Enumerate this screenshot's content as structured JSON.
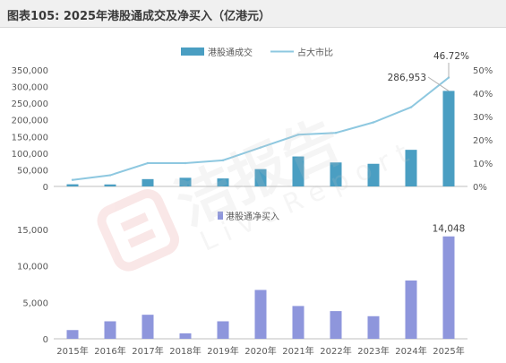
{
  "header": {
    "title": "图表105: 2025年港股通成交及净买入（亿港元）"
  },
  "watermark": {
    "main": "洁报告",
    "sub": "LiveReport"
  },
  "colors": {
    "bar_top": "#4a9ec2",
    "line": "#8ec8e0",
    "bar_bottom": "#8e96dc",
    "axis": "#bfbfbf",
    "text": "#595959"
  },
  "chart_data": [
    {
      "type": "bar+line",
      "categories": [
        "2015年",
        "2016年",
        "2017年",
        "2018年",
        "2019年",
        "2020年",
        "2021年",
        "2022年",
        "2023年",
        "2024年",
        "2025年"
      ],
      "series": [
        {
          "name": "港股通成交",
          "axis": "left",
          "type": "bar",
          "values": [
            6500,
            6000,
            22000,
            26000,
            24000,
            52000,
            90000,
            72000,
            68000,
            110000,
            286953
          ]
        },
        {
          "name": "占大市比",
          "axis": "right",
          "type": "line",
          "values": [
            2.8,
            4.8,
            10.0,
            10.0,
            11.2,
            16.7,
            22.2,
            23.0,
            27.5,
            34.0,
            46.72
          ]
        }
      ],
      "annotations": [
        "286,953",
        "46.72%"
      ],
      "left_axis": {
        "min": 0,
        "max": 350000,
        "ticks": [
          0,
          50000,
          100000,
          150000,
          200000,
          250000,
          300000,
          350000
        ],
        "tick_labels": [
          "0",
          "50,000",
          "100,000",
          "150,000",
          "200,000",
          "250,000",
          "300,000",
          "350,000"
        ]
      },
      "right_axis": {
        "min": 0,
        "max": 50,
        "ticks": [
          0,
          10,
          20,
          30,
          40,
          50
        ],
        "tick_labels": [
          "0%",
          "10%",
          "20%",
          "30%",
          "40%",
          "50%"
        ]
      },
      "legend": "top-center",
      "grid": false
    },
    {
      "type": "bar",
      "categories": [
        "2015年",
        "2016年",
        "2017年",
        "2018年",
        "2019年",
        "2020年",
        "2021年",
        "2022年",
        "2023年",
        "2024年",
        "2025年"
      ],
      "series": [
        {
          "name": "港股通净买入",
          "values": [
            1200,
            2400,
            3300,
            750,
            2400,
            6700,
            4500,
            3800,
            3100,
            8000,
            14048
          ]
        }
      ],
      "annotations": [
        "14,048"
      ],
      "y_axis": {
        "min": 0,
        "max": 15000,
        "ticks": [
          0,
          5000,
          10000,
          15000
        ],
        "tick_labels": [
          "0",
          "5,000",
          "10,000",
          "15,000"
        ]
      },
      "legend": "top-center",
      "grid": false
    }
  ]
}
